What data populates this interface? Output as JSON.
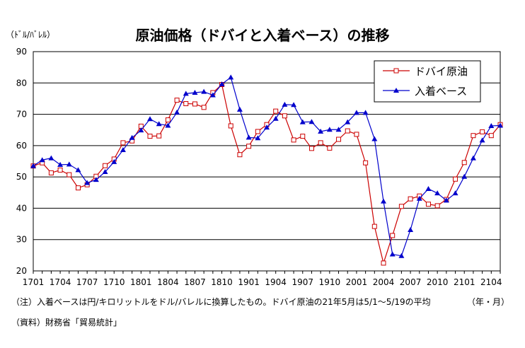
{
  "chart_data": {
    "type": "line",
    "title": "原油価格（ドバイと入着ベース）の推移",
    "unit_label": "（ﾄﾞﾙ/ﾊﾞﾚﾙ）",
    "x_axis_caption": "（年・月）",
    "ylim": [
      20,
      90
    ],
    "yticks": [
      20,
      30,
      40,
      50,
      60,
      70,
      80,
      90
    ],
    "grid": true,
    "legend_position": "top-right",
    "x_tick_labels": [
      "1701",
      "1704",
      "1707",
      "1710",
      "1801",
      "1804",
      "1807",
      "1810",
      "1901",
      "1904",
      "1907",
      "1910",
      "2001",
      "2004",
      "2007",
      "2010",
      "2101",
      "2104"
    ],
    "x": [
      "1701",
      "1702",
      "1703",
      "1704",
      "1705",
      "1706",
      "1707",
      "1708",
      "1709",
      "1710",
      "1711",
      "1712",
      "1801",
      "1802",
      "1803",
      "1804",
      "1805",
      "1806",
      "1807",
      "1808",
      "1809",
      "1810",
      "1811",
      "1812",
      "1901",
      "1902",
      "1903",
      "1904",
      "1905",
      "1906",
      "1907",
      "1908",
      "1909",
      "1910",
      "1911",
      "1912",
      "2001",
      "2002",
      "2003",
      "2004",
      "2005",
      "2006",
      "2007",
      "2008",
      "2009",
      "2010",
      "2011",
      "2012",
      "2101",
      "2102",
      "2103",
      "2104",
      "2105"
    ],
    "series": [
      {
        "name": "ドバイ原油",
        "color": "#cc0000",
        "marker": "open-square",
        "values": [
          53.5,
          54.5,
          51.3,
          52.2,
          50.7,
          46.5,
          47.5,
          50.2,
          53.6,
          55.7,
          60.9,
          61.5,
          66.2,
          63.0,
          63.1,
          68.2,
          74.5,
          73.4,
          73.3,
          72.2,
          76.9,
          79.5,
          66.3,
          57.1,
          59.8,
          64.5,
          66.7,
          71.0,
          69.5,
          61.8,
          63.0,
          59.1,
          60.9,
          59.2,
          62.0,
          64.7,
          63.6,
          54.5,
          34.2,
          22.5,
          31.3,
          40.6,
          43.0,
          43.9,
          41.3,
          40.8,
          42.8,
          49.3,
          54.6,
          63.2,
          64.4,
          63.2,
          66.7
        ]
      },
      {
        "name": "入着ベース",
        "color": "#0000cc",
        "marker": "filled-triangle",
        "values": [
          53.5,
          55.4,
          56.0,
          53.9,
          54.0,
          52.2,
          48.1,
          49.1,
          51.6,
          54.8,
          58.6,
          62.5,
          64.9,
          68.5,
          66.9,
          66.4,
          70.6,
          76.6,
          76.9,
          77.2,
          76.1,
          79.6,
          81.8,
          71.5,
          62.6,
          62.4,
          65.8,
          68.6,
          73.1,
          73.0,
          67.5,
          67.6,
          64.5,
          65.1,
          65.1,
          67.5,
          70.5,
          70.5,
          62.1,
          42.2,
          25.3,
          24.8,
          33.1,
          43.1,
          46.2,
          44.8,
          42.5,
          44.8,
          50.1,
          56.0,
          61.7,
          66.3,
          66.4
        ]
      }
    ]
  },
  "notes": {
    "note1": "（注）入着ベースは円/キロリットルをドル/バレルに換算したもの。ドバイ原油の21年5月は5/1～5/19の平均",
    "source": "（資料）財務省「貿易統計」"
  }
}
